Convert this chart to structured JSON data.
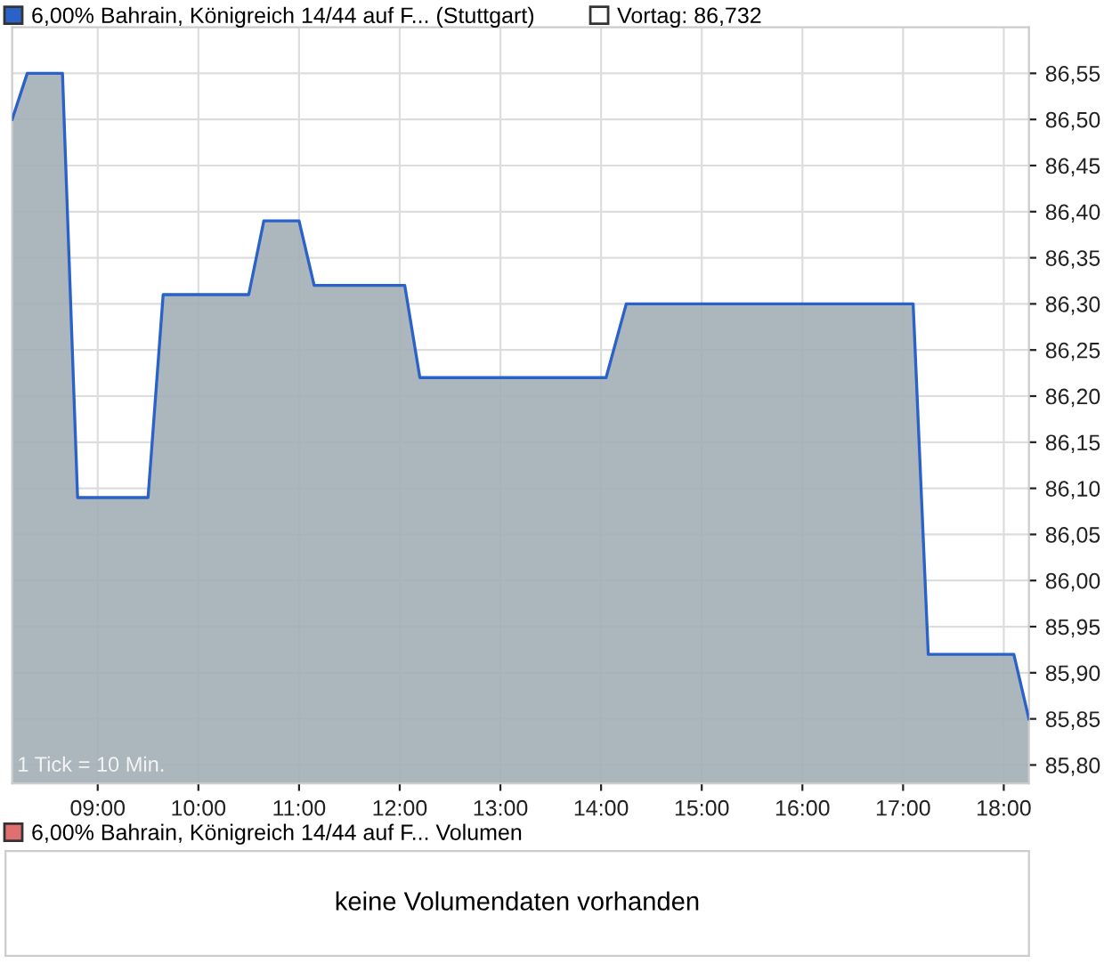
{
  "chart_data": [
    {
      "type": "area",
      "x": [
        8.15,
        8.3,
        8.65,
        8.8,
        9.5,
        9.65,
        10.5,
        10.65,
        11.0,
        11.15,
        12.05,
        12.2,
        14.05,
        14.25,
        17.1,
        17.25,
        18.1,
        18.25
      ],
      "series": [
        {
          "name": "6,00% Bahrain, Königreich 14/44 auf F... (Stuttgart)",
          "color": "#2a62c9",
          "values": [
            86.5,
            86.55,
            86.55,
            86.09,
            86.09,
            86.31,
            86.31,
            86.39,
            86.39,
            86.32,
            86.32,
            86.22,
            86.22,
            86.3,
            86.3,
            85.92,
            85.92,
            85.85
          ]
        }
      ],
      "xlim": [
        8.15,
        18.25
      ],
      "xticks": [
        {
          "value": 9,
          "label": "09:00"
        },
        {
          "value": 10,
          "label": "10:00"
        },
        {
          "value": 11,
          "label": "11:00"
        },
        {
          "value": 12,
          "label": "12:00"
        },
        {
          "value": 13,
          "label": "13:00"
        },
        {
          "value": 14,
          "label": "14:00"
        },
        {
          "value": 15,
          "label": "15:00"
        },
        {
          "value": 16,
          "label": "16:00"
        },
        {
          "value": 17,
          "label": "17:00"
        },
        {
          "value": 18,
          "label": "18:00"
        }
      ],
      "ylim": [
        85.78,
        86.6
      ],
      "yticks": [
        {
          "value": 85.8,
          "label": "85,80"
        },
        {
          "value": 85.85,
          "label": "85,85"
        },
        {
          "value": 85.9,
          "label": "85,90"
        },
        {
          "value": 85.95,
          "label": "85,95"
        },
        {
          "value": 86.0,
          "label": "86,00"
        },
        {
          "value": 86.05,
          "label": "86,05"
        },
        {
          "value": 86.1,
          "label": "86,10"
        },
        {
          "value": 86.15,
          "label": "86,15"
        },
        {
          "value": 86.2,
          "label": "86,20"
        },
        {
          "value": 86.25,
          "label": "86,25"
        },
        {
          "value": 86.3,
          "label": "86,30"
        },
        {
          "value": 86.35,
          "label": "86,35"
        },
        {
          "value": 86.4,
          "label": "86,40"
        },
        {
          "value": 86.45,
          "label": "86,45"
        },
        {
          "value": 86.5,
          "label": "86,50"
        },
        {
          "value": 86.55,
          "label": "86,55"
        }
      ],
      "grid": true,
      "legend": "top left",
      "marker": "none",
      "line_style": "solid",
      "annotations": [
        "Vortag: 86,732",
        "1 Tick = 10 Min."
      ]
    },
    {
      "type": "other",
      "title": "6,00% Bahrain, Königreich 14/44 auf F... Volumen",
      "color": "#e07070",
      "annotations": [
        "keine Volumendaten vorhanden"
      ]
    }
  ]
}
